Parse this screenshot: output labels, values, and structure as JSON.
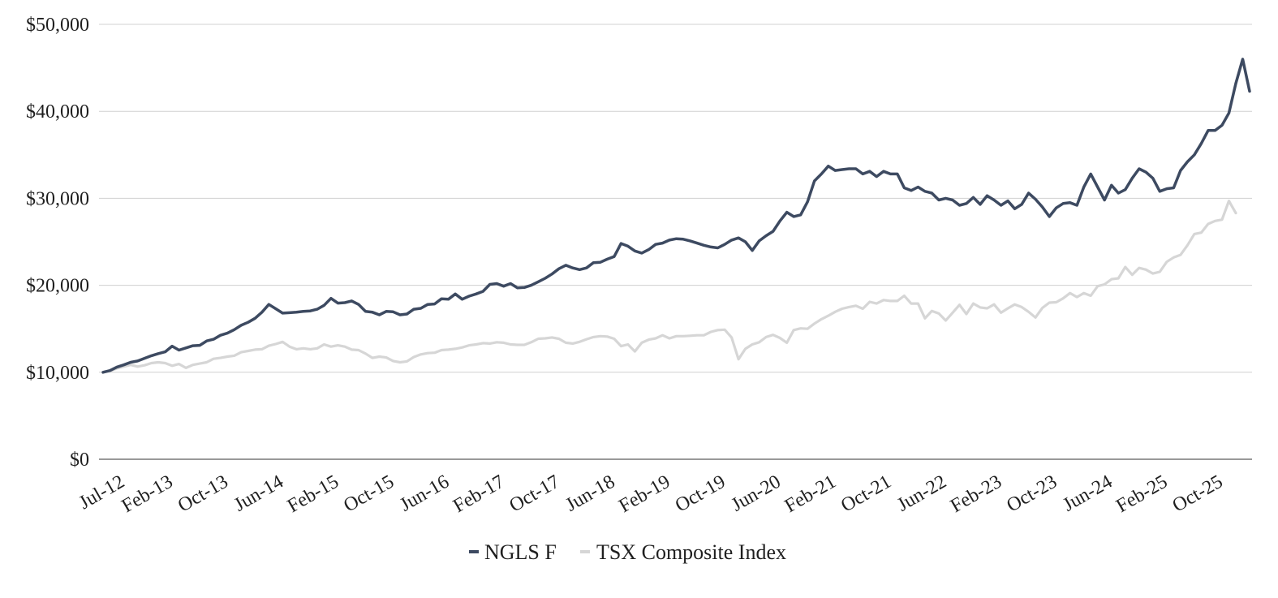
{
  "chart_data": {
    "type": "line",
    "title": "",
    "xlabel": "",
    "ylabel": "",
    "ylim": [
      0,
      50000
    ],
    "y_ticks": [
      0,
      10000,
      20000,
      30000,
      40000,
      50000
    ],
    "y_tick_labels": [
      "$0",
      "$10,000",
      "$20,000",
      "$30,000",
      "$40,000",
      "$50,000"
    ],
    "x_tick_labels": [
      "Jul-12",
      "Feb-13",
      "Oct-13",
      "Jun-14",
      "Feb-15",
      "Oct-15",
      "Jun-16",
      "Feb-17",
      "Oct-17",
      "Jun-18",
      "Feb-19",
      "Oct-19",
      "Jun-20",
      "Feb-21",
      "Oct-21",
      "Jun-22",
      "Feb-23",
      "Oct-23",
      "Jun-24",
      "Feb-25",
      "Oct-25"
    ],
    "x_tick_index": [
      0,
      7,
      15,
      23,
      31,
      39,
      47,
      55,
      63,
      71,
      79,
      87,
      95,
      103,
      111,
      119,
      127,
      135,
      143,
      151,
      159
    ],
    "grid": true,
    "legend_position": "bottom-center",
    "series": [
      {
        "name": "NGLS F",
        "color": "#3d4a61",
        "values": [
          10000,
          10200,
          10600,
          10850,
          11150,
          11300,
          11600,
          11900,
          12150,
          12350,
          13000,
          12550,
          12800,
          13050,
          13100,
          13600,
          13800,
          14250,
          14500,
          14900,
          15400,
          15750,
          16200,
          16900,
          17800,
          17300,
          16800,
          16850,
          16900,
          17000,
          17050,
          17250,
          17700,
          18500,
          17950,
          18000,
          18200,
          17800,
          17000,
          16900,
          16600,
          17000,
          16950,
          16600,
          16700,
          17250,
          17350,
          17800,
          17850,
          18450,
          18400,
          19000,
          18400,
          18750,
          19000,
          19300,
          20100,
          20200,
          19900,
          20200,
          19700,
          19750,
          20000,
          20400,
          20800,
          21300,
          21900,
          22300,
          22000,
          21800,
          22000,
          22600,
          22650,
          23000,
          23300,
          24800,
          24500,
          23950,
          23700,
          24100,
          24700,
          24850,
          25200,
          25350,
          25300,
          25100,
          24850,
          24600,
          24400,
          24300,
          24700,
          25200,
          25450,
          25000,
          24000,
          25100,
          25700,
          26200,
          27400,
          28400,
          27900,
          28100,
          29600,
          32000,
          32800,
          33700,
          33200,
          33300,
          33400,
          33400,
          32800,
          33100,
          32500,
          33100,
          32800,
          32800,
          31200,
          30900,
          31300,
          30800,
          30600,
          29800,
          30000,
          29800,
          29200,
          29400,
          30100,
          29300,
          30300,
          29800,
          29200,
          29700,
          28800,
          29300,
          30600,
          29900,
          29000,
          27900,
          28900,
          29400,
          29500,
          29200,
          31300,
          32800,
          31300,
          29800,
          31500,
          30600,
          31000,
          32300,
          33400,
          33000,
          32300,
          30800,
          31100,
          31200,
          33200,
          34200,
          35000,
          36300,
          37800,
          37800,
          38400,
          39800,
          43200,
          46000,
          42300
        ]
      },
      {
        "name": "TSX Composite Index",
        "color": "#d6d6d6",
        "values": [
          10000,
          10150,
          10450,
          10650,
          10850,
          10650,
          10800,
          11050,
          11150,
          11050,
          10750,
          10950,
          10500,
          10850,
          11000,
          11150,
          11550,
          11650,
          11800,
          11900,
          12300,
          12450,
          12600,
          12650,
          13050,
          13250,
          13500,
          12950,
          12650,
          12750,
          12650,
          12750,
          13200,
          12950,
          13100,
          12950,
          12600,
          12550,
          12150,
          11650,
          11800,
          11700,
          11300,
          11150,
          11250,
          11750,
          12050,
          12200,
          12250,
          12550,
          12600,
          12700,
          12850,
          13100,
          13200,
          13350,
          13300,
          13450,
          13400,
          13200,
          13150,
          13150,
          13450,
          13850,
          13900,
          14000,
          13850,
          13400,
          13300,
          13500,
          13800,
          14050,
          14150,
          14100,
          13850,
          13000,
          13200,
          12400,
          13400,
          13750,
          13900,
          14250,
          13900,
          14150,
          14150,
          14200,
          14250,
          14250,
          14650,
          14850,
          14900,
          14000,
          11500,
          12700,
          13200,
          13450,
          14050,
          14300,
          13950,
          13400,
          14850,
          15050,
          15000,
          15600,
          16100,
          16500,
          16950,
          17300,
          17500,
          17650,
          17300,
          18100,
          17900,
          18300,
          18200,
          18200,
          18800,
          17900,
          17900,
          16200,
          17050,
          16750,
          15950,
          16850,
          17750,
          16700,
          17900,
          17450,
          17350,
          17800,
          16850,
          17350,
          17800,
          17500,
          16950,
          16300,
          17400,
          18000,
          18050,
          18500,
          19100,
          18650,
          19100,
          18800,
          19900,
          20100,
          20700,
          20800,
          22100,
          21200,
          22000,
          21800,
          21350,
          21550,
          22700,
          23200,
          23500,
          24600,
          25900,
          26050,
          27050,
          27400,
          27550,
          29700,
          28300
        ]
      }
    ]
  }
}
